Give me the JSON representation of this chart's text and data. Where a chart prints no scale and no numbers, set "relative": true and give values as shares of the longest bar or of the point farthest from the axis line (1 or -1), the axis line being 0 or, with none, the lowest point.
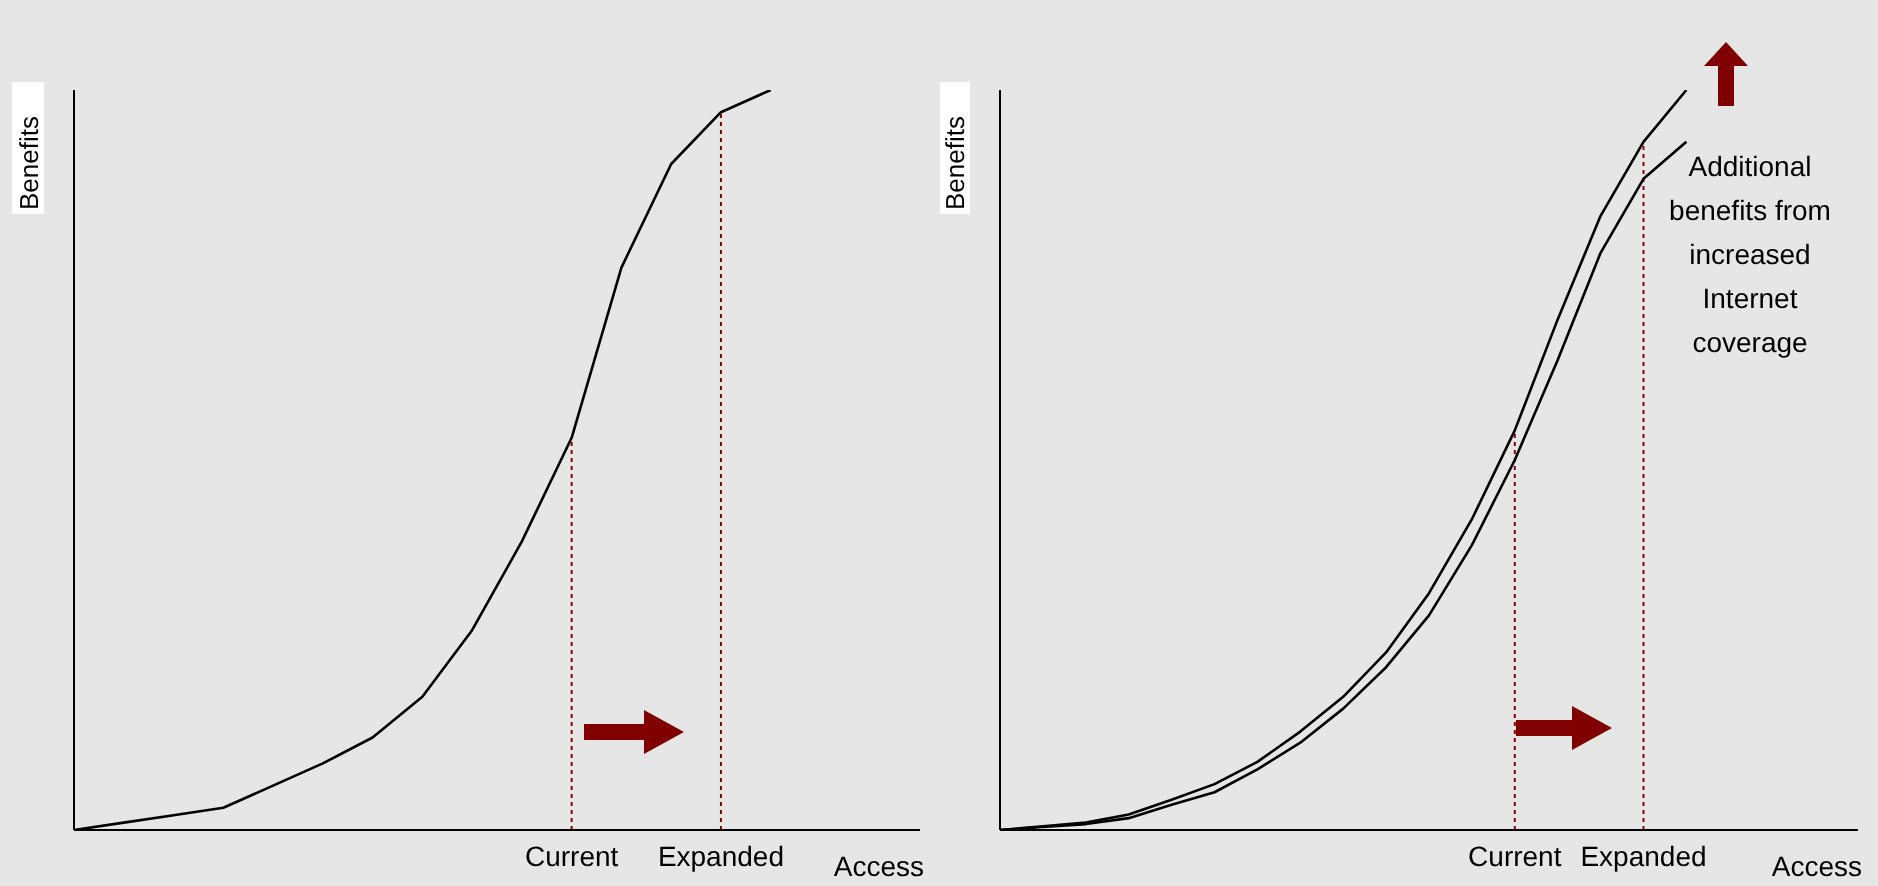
{
  "chart_data": [
    {
      "type": "line",
      "ylabel": "Benefits",
      "xlabel": "Access",
      "relative": true,
      "legend": false,
      "grid": false,
      "categories": [
        null,
        null,
        null,
        null,
        null,
        null,
        null,
        null,
        null,
        null,
        "Current",
        null,
        null,
        "Expanded",
        null,
        null,
        null,
        null
      ],
      "series": [
        {
          "color": "#000000",
          "values": [
            0,
            0.01,
            0.02,
            0.03,
            0.06,
            0.09,
            0.125,
            0.18,
            0.27,
            0.39,
            0.53,
            0.76,
            0.9,
            0.97,
            1,
            null,
            null,
            null
          ]
        }
      ],
      "ref_lines": [
        {
          "axis": "x",
          "value": "Current",
          "color": "#8b0000",
          "line_style": "dotted"
        },
        {
          "axis": "x",
          "value": "Expanded",
          "color": "#8b0000",
          "line_style": "dotted"
        }
      ]
    },
    {
      "type": "line",
      "ylabel": "Benefits",
      "xlabel": "Access",
      "relative": true,
      "legend": false,
      "grid": false,
      "categories": [
        null,
        null,
        null,
        null,
        null,
        null,
        null,
        null,
        null,
        null,
        null,
        null,
        "Current",
        null,
        null,
        "Expanded",
        null,
        null,
        null,
        null,
        null
      ],
      "series": [
        {
          "color": "#000000",
          "values": [
            0,
            0.005,
            0.01,
            0.021,
            0.041,
            0.062,
            0.092,
            0.133,
            0.18,
            0.24,
            0.32,
            0.42,
            0.54,
            0.69,
            0.83,
            0.93,
            1,
            null,
            null,
            null,
            null
          ]
        },
        {
          "color": "#000000",
          "values": [
            0,
            0.004,
            0.008,
            0.016,
            0.034,
            0.051,
            0.082,
            0.118,
            0.164,
            0.22,
            0.29,
            0.385,
            0.5,
            0.635,
            0.78,
            0.88,
            0.93,
            null,
            null,
            null,
            null
          ]
        }
      ],
      "ref_lines": [
        {
          "axis": "x",
          "value": "Current",
          "color": "#8b0000",
          "line_style": "dotted"
        },
        {
          "axis": "x",
          "value": "Expanded",
          "color": "#8b0000",
          "line_style": "dotted"
        }
      ],
      "annotations": [
        "Additional benefits from increased Internet coverage"
      ]
    }
  ]
}
